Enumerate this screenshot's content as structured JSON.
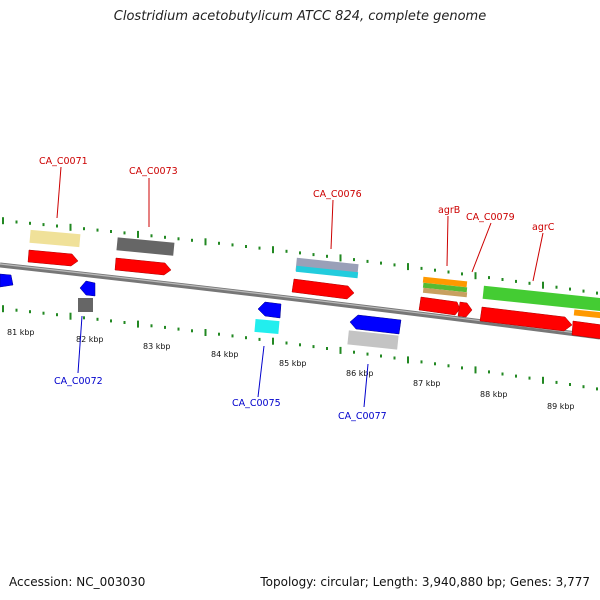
{
  "title": "Clostridium acetobutylicum ATCC 824, complete genome",
  "footer": {
    "accession": "Accession: NC_003030",
    "stats": "Topology: circular; Length: 3,940,880 bp; Genes: 3,777"
  },
  "colors": {
    "cds_forward": "#ff0000",
    "cds_reverse": "#0000ff",
    "forward_label": "#cc0000",
    "reverse_label": "#0000cc",
    "backbone": "#888888",
    "ticks": "#228822"
  },
  "scale": {
    "unit": "kbp",
    "labels": [
      "81 kbp",
      "82 kbp",
      "83 kbp",
      "84 kbp",
      "85 kbp",
      "86 kbp",
      "87 kbp",
      "88 kbp",
      "89 kbp"
    ]
  },
  "genes": {
    "forward_labels": [
      "CA_C0071",
      "CA_C0073",
      "CA_C0076",
      "agrB",
      "CA_C0079",
      "agrC"
    ],
    "reverse_labels": [
      "CA_C0072",
      "CA_C0075",
      "CA_C0077"
    ]
  }
}
